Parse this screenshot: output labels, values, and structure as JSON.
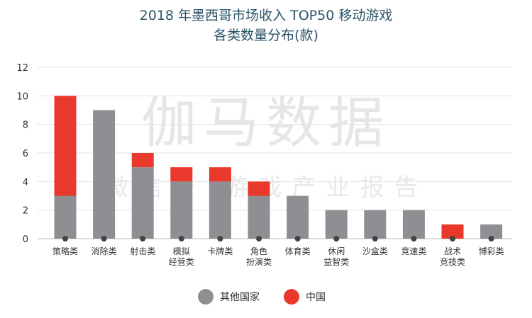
{
  "watermark": {
    "main": "伽马数据",
    "sub": "微信号 游戏产业报告"
  },
  "colors": {
    "other": "#8f8f93",
    "china": "#e8392c",
    "title": "#2c5468",
    "grid": "#e3e3e3"
  },
  "chart_data": {
    "type": "bar",
    "stacked": true,
    "title": [
      "2018 年墨西哥市场收入 TOP50 移动游戏",
      "各类数量分布(款)"
    ],
    "ylim": [
      0,
      12
    ],
    "yticks": [
      "0",
      "2",
      "4",
      "6",
      "8",
      "10",
      "12"
    ],
    "grid": true,
    "legend_position": "bottom-center",
    "categories": [
      [
        "策略类"
      ],
      [
        "消除类"
      ],
      [
        "射击类"
      ],
      [
        "模拟",
        "经营类"
      ],
      [
        "卡牌类"
      ],
      [
        "角色",
        "扮演类"
      ],
      [
        "体育类"
      ],
      [
        "休闲",
        "益智类"
      ],
      [
        "沙盒类"
      ],
      [
        "竞速类"
      ],
      [
        "战术",
        "竞技类"
      ],
      [
        "博彩类"
      ]
    ],
    "series": [
      {
        "name": "其他国家",
        "color": "#8f8f93",
        "values": [
          3,
          9,
          5,
          4,
          4,
          3,
          3,
          2,
          2,
          2,
          0,
          1
        ]
      },
      {
        "name": "中国",
        "color": "#e8392c",
        "values": [
          7,
          0,
          1,
          1,
          1,
          1,
          0,
          0,
          0,
          0,
          1,
          0
        ]
      }
    ]
  }
}
